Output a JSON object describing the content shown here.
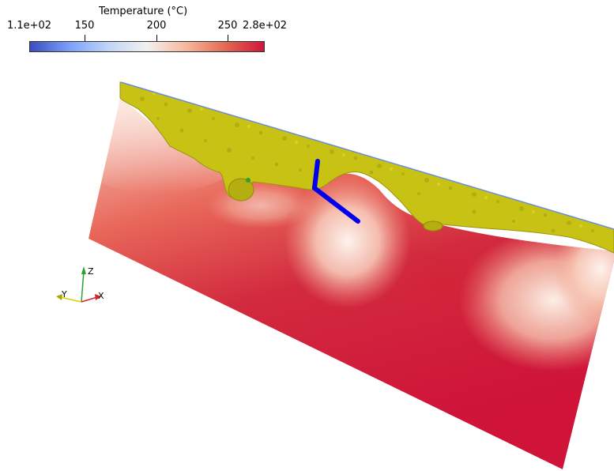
{
  "colorbar": {
    "title": "Temperature (°C)",
    "range": [
      110,
      280
    ],
    "ticks": [
      {
        "label": "1.1e+02",
        "value": 110
      },
      {
        "label": "150",
        "value": 150
      },
      {
        "label": "200",
        "value": 200
      },
      {
        "label": "250",
        "value": 250
      },
      {
        "label": "2.8e+02",
        "value": 280
      }
    ],
    "colormap": [
      "#3b4cc0",
      "#7b9ff9",
      "#c0d4f5",
      "#f2f0f0",
      "#f7b89c",
      "#e36a53",
      "#d0163a"
    ]
  },
  "axes": {
    "x_label": "X",
    "y_label": "Y",
    "z_label": "Z",
    "x_color": "#d62728",
    "y_color": "#d4d400",
    "z_color": "#2ca02c"
  },
  "scene": {
    "surface_color": "#c8c214",
    "probe_color": "#0000ee",
    "slice_hot_color": "#d0163a",
    "slice_cool_color": "#fdeee4"
  }
}
